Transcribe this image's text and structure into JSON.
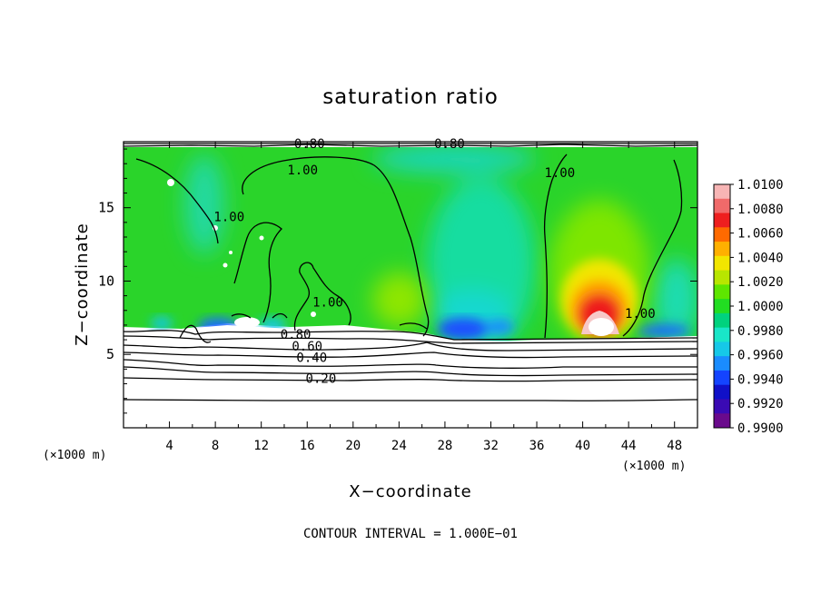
{
  "chart_data": {
    "type": "heatmap",
    "title": "saturation ratio",
    "xlabel": "X−coordinate",
    "ylabel": "Z−coordinate",
    "x_unit_left": "(×1000 m)",
    "x_unit_right": "(×1000 m)",
    "xlim": [
      0,
      50
    ],
    "ylim": [
      0,
      19.5
    ],
    "x_ticks": [
      4,
      8,
      12,
      16,
      20,
      24,
      28,
      32,
      36,
      40,
      44,
      48
    ],
    "y_ticks": [
      5,
      10,
      15
    ],
    "footer": "CONTOUR INTERVAL = 1.000E−01",
    "colorbar": {
      "levels": [
        "1.0100",
        "1.0080",
        "1.0060",
        "1.0040",
        "1.0020",
        "1.0000",
        "0.9980",
        "0.9960",
        "0.9940",
        "0.9920",
        "0.9900"
      ],
      "colors": [
        "#f7b5b5",
        "#f06a6a",
        "#ee1f1f",
        "#ff6a00",
        "#ffb000",
        "#f2e600",
        "#b8e600",
        "#5ee600",
        "#22dd22",
        "#00d27e",
        "#19e6c8",
        "#16c8e8",
        "#1a8cff",
        "#1444ff",
        "#1010c8",
        "#3a0ab4",
        "#6a0a8c"
      ]
    },
    "contour_labels": [
      {
        "text": "0.80",
        "x": 16.2,
        "y": 19.2
      },
      {
        "text": "0.80",
        "x": 28.4,
        "y": 19.2
      },
      {
        "text": "1.00",
        "x": 15.6,
        "y": 17.4
      },
      {
        "text": "1.00",
        "x": 38.0,
        "y": 17.2
      },
      {
        "text": "1.00",
        "x": 9.2,
        "y": 14.2
      },
      {
        "text": "1.00",
        "x": 17.8,
        "y": 8.4
      },
      {
        "text": "1.00",
        "x": 45.0,
        "y": 7.6
      },
      {
        "text": "0.80",
        "x": 15.0,
        "y": 6.2
      },
      {
        "text": "0.60",
        "x": 16.0,
        "y": 5.4
      },
      {
        "text": "0.40",
        "x": 16.4,
        "y": 4.6
      },
      {
        "text": "0.20",
        "x": 17.2,
        "y": 3.2
      }
    ]
  }
}
